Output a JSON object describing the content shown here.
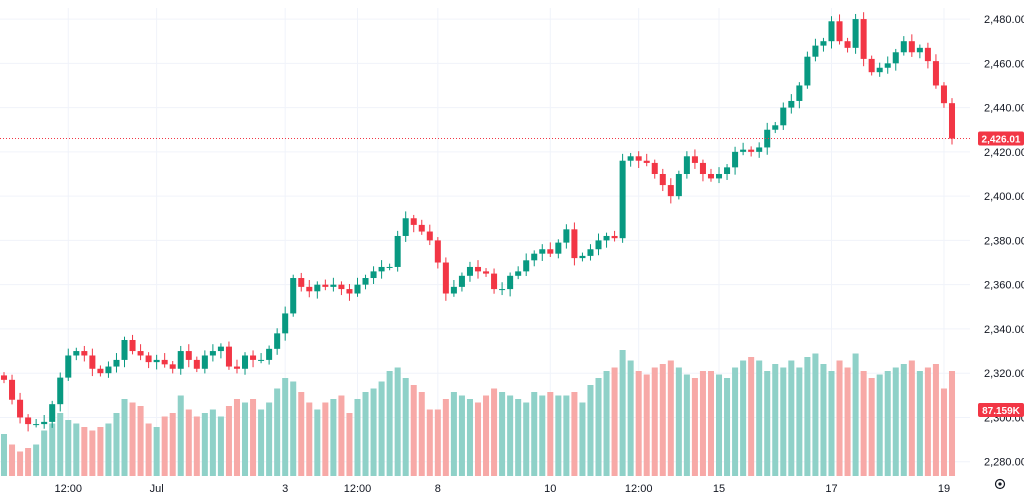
{
  "chart_data": {
    "type": "candlestick",
    "grid": true,
    "y_axis": {
      "position": "right",
      "range": [
        2274,
        2485
      ],
      "ticks": [
        2280,
        2300,
        2320,
        2340,
        2360,
        2380,
        2400,
        2420,
        2440,
        2460,
        2480
      ],
      "tick_labels": [
        "2,280.00",
        "2,300.00",
        "2,320.00",
        "2,340.00",
        "2,360.00",
        "2,380.00",
        "2,400.00",
        "2,420.00",
        "2,440.00",
        "2,460.00",
        "2,480.00"
      ]
    },
    "x_axis": {
      "labels": [
        "12:00",
        "Jul",
        "3",
        "12:00",
        "8",
        "10",
        "12:00",
        "15",
        "17",
        "19"
      ],
      "label_bar_index": [
        8,
        19,
        35,
        44,
        54,
        68,
        79,
        89,
        103,
        117
      ]
    },
    "last_price": {
      "value": 2426.01,
      "label": "2,426.01",
      "color": "#f23645"
    },
    "last_volume": {
      "label": "87.159K",
      "color": "#f23645"
    },
    "colors": {
      "up": "#089981",
      "down": "#f23645",
      "vol_up": "#8fd1c8",
      "vol_down": "#f7a9a7",
      "grid": "#f0f3fa",
      "axis_text": "#131722"
    },
    "close_series": [
      2317,
      2308,
      2300,
      2297,
      2297,
      2298,
      2306,
      2318,
      2328,
      2330,
      2328,
      2322,
      2320,
      2323,
      2326,
      2335,
      2330,
      2328,
      2325,
      2326,
      2324,
      2322,
      2330,
      2326,
      2322,
      2328,
      2330,
      2332,
      2323,
      2322,
      2328,
      2326,
      2326,
      2331,
      2338,
      2347,
      2363,
      2359,
      2357,
      2360,
      2359,
      2360,
      2358,
      2356,
      2360,
      2363,
      2366,
      2368,
      2368,
      2382,
      2390,
      2387,
      2384,
      2380,
      2370,
      2356,
      2359,
      2364,
      2368,
      2366,
      2365,
      2358,
      2358,
      2364,
      2366,
      2371,
      2374,
      2376,
      2374,
      2379,
      2385,
      2372,
      2373,
      2376,
      2380,
      2382,
      2381,
      2416,
      2418,
      2416,
      2415,
      2410,
      2405,
      2400,
      2410,
      2418,
      2415,
      2410,
      2408,
      2410,
      2413,
      2420,
      2421,
      2420,
      2422,
      2430,
      2432,
      2440,
      2443,
      2450,
      2463,
      2468,
      2470,
      2479,
      2470,
      2467,
      2480,
      2462,
      2456,
      2458,
      2460,
      2465,
      2470,
      2465,
      2467,
      2461,
      2450,
      2442,
      2426.01
    ],
    "volume_series": [
      12,
      9,
      7,
      8,
      9,
      13,
      15,
      18,
      16,
      15,
      14,
      13,
      14,
      15,
      18,
      22,
      21,
      20,
      15,
      14,
      17,
      18,
      23,
      19,
      17,
      18,
      19,
      17,
      20,
      22,
      21,
      22,
      19,
      21,
      25,
      28,
      27,
      24,
      21,
      19,
      21,
      22,
      23,
      18,
      22,
      24,
      25,
      27,
      30,
      31,
      28,
      26,
      24,
      19,
      19,
      22,
      24,
      23,
      22,
      21,
      23,
      25,
      24,
      23,
      22,
      21,
      24,
      23,
      24,
      23,
      23,
      24,
      21,
      26,
      28,
      30,
      31,
      36,
      33,
      30,
      29,
      31,
      32,
      33,
      31,
      29,
      28,
      30,
      30,
      29,
      28,
      31,
      33,
      34,
      33,
      30,
      32,
      31,
      33,
      31,
      34,
      35,
      32,
      30,
      33,
      31,
      35,
      30,
      28,
      29,
      30,
      31,
      32,
      33,
      30,
      31,
      32,
      25,
      30
    ]
  }
}
